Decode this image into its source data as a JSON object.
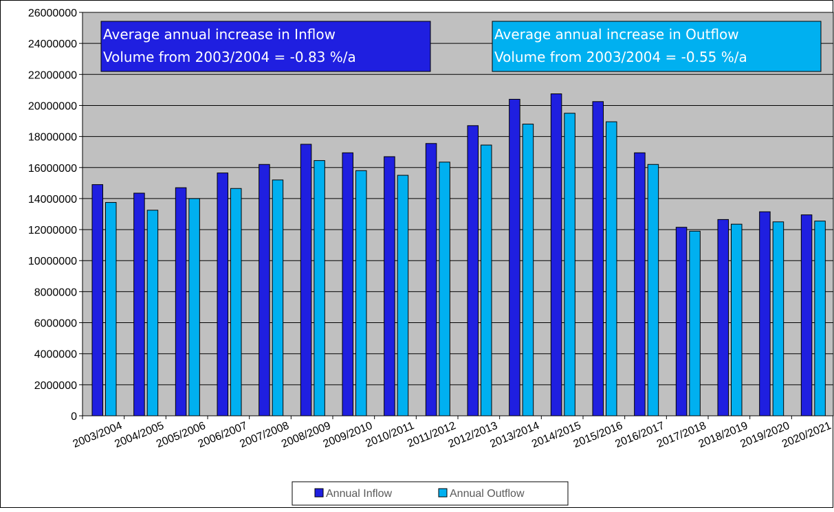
{
  "chart_data": {
    "type": "bar",
    "categories": [
      "2003/2004",
      "2004/2005",
      "2005/2006",
      "2006/2007",
      "2007/2008",
      "2008/2009",
      "2009/2010",
      "2010/2011",
      "2011/2012",
      "2012/2013",
      "2013/2014",
      "2014/2015",
      "2015/2016",
      "2016/2017",
      "2017/2018",
      "2018/2019",
      "2019/2020",
      "2020/2021"
    ],
    "series": [
      {
        "name": "Annual Inflow",
        "color": "#1F1FE0",
        "values": [
          14900000,
          14350000,
          14700000,
          15650000,
          16200000,
          17500000,
          16950000,
          16700000,
          17550000,
          18700000,
          20400000,
          20750000,
          20250000,
          16950000,
          12150000,
          12650000,
          13150000,
          12950000
        ]
      },
      {
        "name": "Annual Outflow",
        "color": "#00B0F0",
        "values": [
          13750000,
          13250000,
          14000000,
          14650000,
          15200000,
          16450000,
          15800000,
          15500000,
          16350000,
          17450000,
          18800000,
          19500000,
          18950000,
          16200000,
          11900000,
          12350000,
          12500000,
          12550000
        ]
      }
    ],
    "ylim": [
      0,
      26000000
    ],
    "yticks": [
      0,
      2000000,
      4000000,
      6000000,
      8000000,
      10000000,
      12000000,
      14000000,
      16000000,
      18000000,
      20000000,
      22000000,
      24000000,
      26000000
    ],
    "grid": true,
    "plot_background": "#C0C0C0",
    "legend": "bottom",
    "annotations": [
      {
        "lines": [
          "Average annual increase in Inflow",
          "Volume from 2003/2004 = -0.83 %/a"
        ],
        "background": "#1F1FE0"
      },
      {
        "lines": [
          "Average annual increase in Outflow",
          "Volume from 2003/2004 = -0.55 %/a"
        ],
        "background": "#00B0F0"
      }
    ],
    "title": "",
    "xlabel": "",
    "ylabel": ""
  }
}
